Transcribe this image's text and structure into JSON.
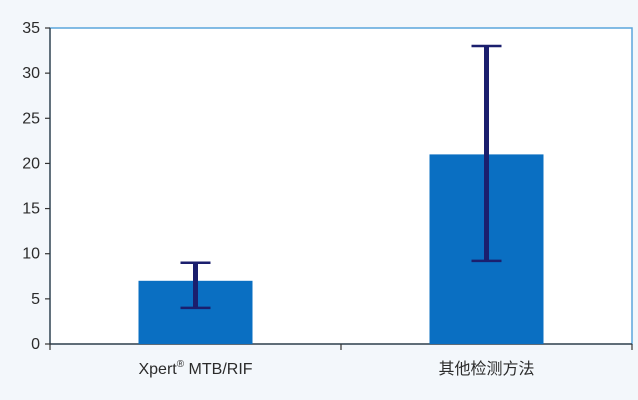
{
  "colors": {
    "background": "#f3f7fb",
    "bar": "#0a6fc2",
    "error_bar": "#1b1f6e",
    "frame": "#5aa5dc",
    "axis": "#333333"
  },
  "chart_data": {
    "type": "bar",
    "title": "",
    "xlabel": "",
    "ylabel": "",
    "ylim": [
      0,
      35
    ],
    "yticks": [
      0,
      5,
      10,
      15,
      20,
      25,
      30,
      35
    ],
    "ytick_labels": [
      "0",
      "5",
      "10",
      "15",
      "20",
      "25",
      "30",
      "35"
    ],
    "grid": false,
    "categories": [
      "Xpert® MTB/RIF",
      "其他检测方法"
    ],
    "category_parts": [
      {
        "main": "Xpert",
        "sup": "®",
        "rest": " MTB/RIF"
      },
      {
        "main": "其他检测方法",
        "sup": "",
        "rest": ""
      }
    ],
    "values": [
      7,
      21
    ],
    "error_low": [
      4,
      9.2
    ],
    "error_high": [
      9,
      33
    ]
  }
}
